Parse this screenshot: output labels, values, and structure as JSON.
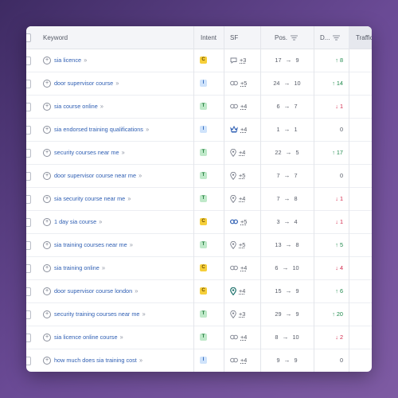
{
  "header": {
    "keyword": "Keyword",
    "intent": "Intent",
    "sf": "SF",
    "pos": "Pos.",
    "diff": "D...",
    "traffic": "Traffic"
  },
  "rows": [
    {
      "keyword": "sia licence",
      "intent": "C",
      "sf_icon": "chat-icon",
      "sf": "+3",
      "pos_from": "17",
      "pos_to": "9",
      "diff": "8",
      "dir": "up"
    },
    {
      "keyword": "door supervisor course",
      "intent": "I",
      "sf_icon": "link-icon",
      "sf": "+5",
      "pos_from": "24",
      "pos_to": "10",
      "diff": "14",
      "dir": "up"
    },
    {
      "keyword": "sia course online",
      "intent": "T",
      "sf_icon": "link-icon",
      "sf": "+4",
      "pos_from": "6",
      "pos_to": "7",
      "diff": "1",
      "dir": "down"
    },
    {
      "keyword": "sia endorsed training qualifications",
      "intent": "I",
      "sf_icon": "crown-icon",
      "sf": "+4",
      "pos_from": "1",
      "pos_to": "1",
      "diff": "0",
      "dir": "zero"
    },
    {
      "keyword": "security courses near me",
      "intent": "T",
      "sf_icon": "pin-icon",
      "sf": "+4",
      "pos_from": "22",
      "pos_to": "5",
      "diff": "17",
      "dir": "up"
    },
    {
      "keyword": "door supervisor course near me",
      "intent": "T",
      "sf_icon": "pin-icon",
      "sf": "+5",
      "pos_from": "7",
      "pos_to": "7",
      "diff": "0",
      "dir": "zero"
    },
    {
      "keyword": "sia security course near me",
      "intent": "T",
      "sf_icon": "pin-icon",
      "sf": "+4",
      "pos_from": "7",
      "pos_to": "8",
      "diff": "1",
      "dir": "down"
    },
    {
      "keyword": "1 day sia course",
      "intent": "C",
      "sf_icon": "link-icon",
      "sf": "+5",
      "pos_from": "3",
      "pos_to": "4",
      "diff": "1",
      "dir": "down"
    },
    {
      "keyword": "sia training courses near me",
      "intent": "T",
      "sf_icon": "pin-icon",
      "sf": "+5",
      "pos_from": "13",
      "pos_to": "8",
      "diff": "5",
      "dir": "up"
    },
    {
      "keyword": "sia training online",
      "intent": "C",
      "sf_icon": "link-icon",
      "sf": "+4",
      "pos_from": "6",
      "pos_to": "10",
      "diff": "4",
      "dir": "down"
    },
    {
      "keyword": "door supervisor course london",
      "intent": "C",
      "sf_icon": "pin-icon",
      "sf": "+4",
      "pos_from": "15",
      "pos_to": "9",
      "diff": "6",
      "dir": "up"
    },
    {
      "keyword": "security training courses near me",
      "intent": "T",
      "sf_icon": "pin-icon",
      "sf": "+3",
      "pos_from": "29",
      "pos_to": "9",
      "diff": "20",
      "dir": "up"
    },
    {
      "keyword": "sia licence online course",
      "intent": "T",
      "sf_icon": "link-icon",
      "sf": "+4",
      "pos_from": "8",
      "pos_to": "10",
      "diff": "2",
      "dir": "down"
    },
    {
      "keyword": "how much does sia training cost",
      "intent": "I",
      "sf_icon": "link-icon",
      "sf": "+4",
      "pos_from": "9",
      "pos_to": "9",
      "diff": "0",
      "dir": "zero"
    }
  ],
  "intent_colors": {
    "C": {
      "bg": "#f6cf3a",
      "fg": "#6b4b00"
    },
    "I": {
      "bg": "#cfe3fb",
      "fg": "#2a63b8"
    },
    "T": {
      "bg": "#bfe9c9",
      "fg": "#1f7a3b"
    }
  },
  "colors": {
    "up": "#1f8a4c",
    "down": "#d3264a",
    "link_blue": "#2f5fb3"
  }
}
